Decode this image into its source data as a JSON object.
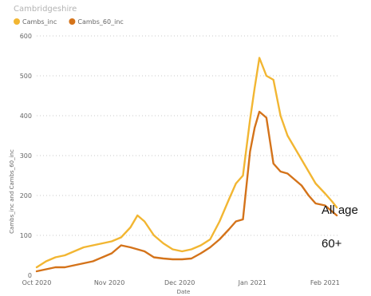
{
  "chart_data": {
    "type": "line",
    "title": "Cambridgeshire",
    "xlabel": "Date",
    "ylabel": "Cambs_inc and Cambs_60_inc",
    "ylim": [
      0,
      600
    ],
    "yticks": [
      0,
      100,
      200,
      300,
      400,
      500,
      600
    ],
    "xlim": [
      "2020-10-01",
      "2021-02-07"
    ],
    "xticks": [
      {
        "date": "2020-10-01",
        "label": "Oct 2020"
      },
      {
        "date": "2020-11-01",
        "label": "Nov 2020"
      },
      {
        "date": "2020-12-01",
        "label": "Dec 2020"
      },
      {
        "date": "2021-01-01",
        "label": "Jan 2021"
      },
      {
        "date": "2021-02-01",
        "label": "Feb 2021"
      }
    ],
    "grid": true,
    "legend_position": "top-left",
    "x": [
      "2020-10-01",
      "2020-10-05",
      "2020-10-09",
      "2020-10-13",
      "2020-10-17",
      "2020-10-21",
      "2020-10-25",
      "2020-10-29",
      "2020-11-02",
      "2020-11-06",
      "2020-11-10",
      "2020-11-13",
      "2020-11-16",
      "2020-11-20",
      "2020-11-24",
      "2020-11-28",
      "2020-12-02",
      "2020-12-06",
      "2020-12-10",
      "2020-12-14",
      "2020-12-18",
      "2020-12-22",
      "2020-12-25",
      "2020-12-28",
      "2020-12-31",
      "2021-01-02",
      "2021-01-04",
      "2021-01-07",
      "2021-01-10",
      "2021-01-13",
      "2021-01-16",
      "2021-01-19",
      "2021-01-22",
      "2021-01-25",
      "2021-01-28",
      "2021-02-01",
      "2021-02-04",
      "2021-02-06"
    ],
    "series": [
      {
        "name": "Cambs_inc",
        "color": "#f2b632",
        "values": [
          20,
          35,
          45,
          50,
          60,
          70,
          75,
          80,
          85,
          95,
          120,
          150,
          135,
          100,
          80,
          65,
          60,
          65,
          75,
          90,
          135,
          190,
          230,
          250,
          390,
          470,
          545,
          500,
          490,
          400,
          350,
          320,
          290,
          260,
          230,
          205,
          185,
          170
        ]
      },
      {
        "name": "Cambs_60_inc",
        "color": "#d4731a",
        "values": [
          10,
          15,
          20,
          20,
          25,
          30,
          35,
          45,
          55,
          75,
          70,
          65,
          60,
          45,
          42,
          40,
          40,
          42,
          55,
          70,
          90,
          115,
          135,
          140,
          310,
          370,
          410,
          395,
          280,
          260,
          255,
          240,
          225,
          200,
          180,
          175,
          160,
          150
        ]
      }
    ],
    "annotations": [
      {
        "text": "All age",
        "series": "Cambs_inc"
      },
      {
        "text": "60+",
        "series": "Cambs_60_inc"
      }
    ]
  }
}
